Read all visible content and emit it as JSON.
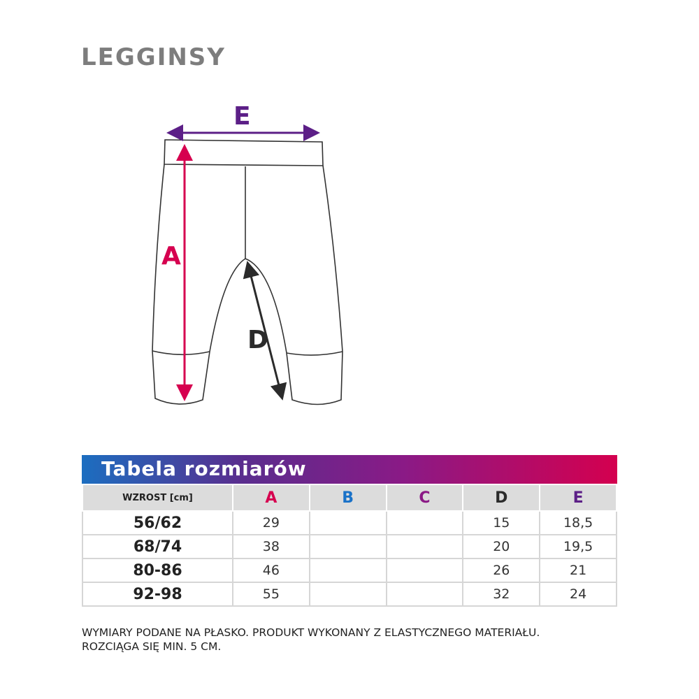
{
  "title": "LEGGINSY",
  "diagram": {
    "labels": {
      "A": "A",
      "D": "D",
      "E": "E"
    },
    "colors": {
      "A": "#d6004f",
      "D": "#2b2b2b",
      "E": "#5c1f87"
    }
  },
  "table": {
    "heading": "Tabela rozmiarów",
    "columns": [
      {
        "label": "WZROST [cm]",
        "color": "#222222"
      },
      {
        "label": "A",
        "color": "#d6004f"
      },
      {
        "label": "B",
        "color": "#1a72c8"
      },
      {
        "label": "C",
        "color": "#8b1a86"
      },
      {
        "label": "D",
        "color": "#2b2b2b"
      },
      {
        "label": "E",
        "color": "#5c1f87"
      }
    ],
    "rows": [
      [
        "56/62",
        "29",
        "",
        "",
        "15",
        "18,5"
      ],
      [
        "68/74",
        "38",
        "",
        "",
        "20",
        "19,5"
      ],
      [
        "80-86",
        "46",
        "",
        "",
        "26",
        "21"
      ],
      [
        "92-98",
        "55",
        "",
        "",
        "32",
        "24"
      ]
    ]
  },
  "note": {
    "line1": "WYMIARY PODANE NA PŁASKO. PRODUKT WYKONANY Z ELASTYCZNEGO MATERIAŁU.",
    "line2": "ROZCIĄGA SIĘ MIN. 5 CM."
  }
}
